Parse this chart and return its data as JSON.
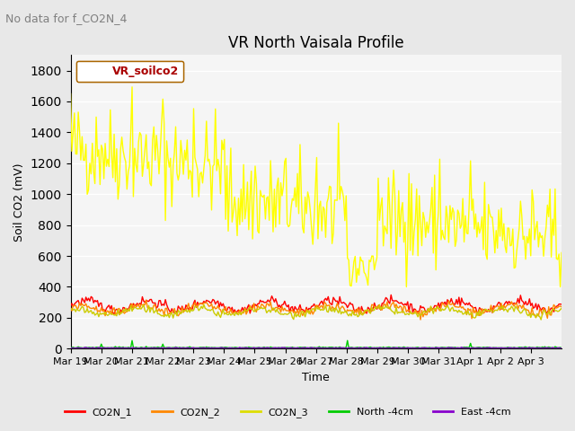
{
  "title": "VR North Vaisala Profile",
  "subtitle": "No data for f_CO2N_4",
  "ylabel": "Soil CO2 (mV)",
  "xlabel": "Time",
  "ylim": [
    0,
    1900
  ],
  "yticks": [
    0,
    200,
    400,
    600,
    800,
    1000,
    1200,
    1400,
    1600,
    1800
  ],
  "xtick_labels": [
    "Mar 19",
    "Mar 20",
    "Mar 21",
    "Mar 22",
    "Mar 23",
    "Mar 24",
    "Mar 25",
    "Mar 26",
    "Mar 27",
    "Mar 28",
    "Mar 29",
    "Mar 30",
    "Mar 31",
    "Apr 1",
    "Apr 2",
    "Apr 3"
  ],
  "legend_label": "VR_soilco2",
  "legend_items": [
    {
      "label": "CO2N_1",
      "color": "#ff0000"
    },
    {
      "label": "CO2N_2",
      "color": "#ff8800"
    },
    {
      "label": "CO2N_3",
      "color": "#dddd00"
    },
    {
      "label": "North -4cm",
      "color": "#00cc00"
    },
    {
      "label": "East -4cm",
      "color": "#8800cc"
    }
  ],
  "background_color": "#e8e8e8",
  "plot_bg_color": "#f5f5f5",
  "grid_color": "#ffffff",
  "seed": 42
}
